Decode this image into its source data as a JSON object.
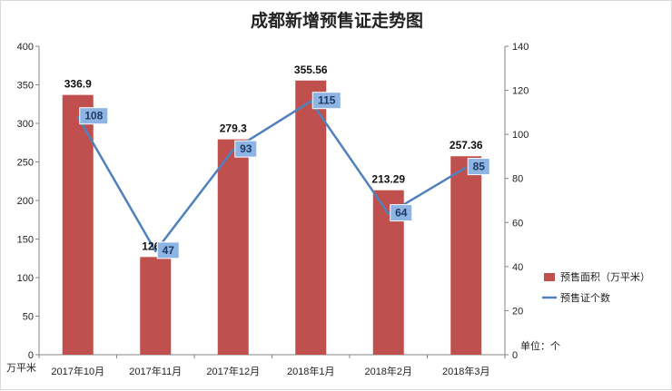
{
  "chart_data": {
    "type": "bar",
    "title": "成都新增预售证走势图",
    "categories": [
      "2017年10月",
      "2017年11月",
      "2017年12月",
      "2018年1月",
      "2018年2月",
      "2018年3月"
    ],
    "series": [
      {
        "name": "预售面积（万平米）",
        "kind": "bar",
        "axis": "left",
        "color": "#c0504d",
        "values": [
          336.9,
          126.7,
          279.3,
          355.56,
          213.29,
          257.36
        ],
        "labels": [
          "336.9",
          "126.7",
          "279.3",
          "355.56",
          "213.29",
          "257.36"
        ]
      },
      {
        "name": "预售证个数",
        "kind": "line",
        "axis": "right",
        "color": "#4f81bd",
        "values": [
          108,
          47,
          93,
          115,
          64,
          85
        ],
        "labels": [
          "108",
          "47",
          "93",
          "115",
          "64",
          "85"
        ]
      }
    ],
    "y_left": {
      "min": 0,
      "max": 400,
      "step": 50,
      "ticks": [
        "0",
        "50",
        "100",
        "150",
        "200",
        "250",
        "300",
        "350",
        "400"
      ],
      "unit_label": "万平米"
    },
    "y_right": {
      "min": 0,
      "max": 140,
      "step": 20,
      "ticks": [
        "0",
        "20",
        "40",
        "60",
        "80",
        "100",
        "120",
        "140"
      ],
      "unit_label": "单位：个"
    },
    "grid": false,
    "legend_position": "right"
  }
}
